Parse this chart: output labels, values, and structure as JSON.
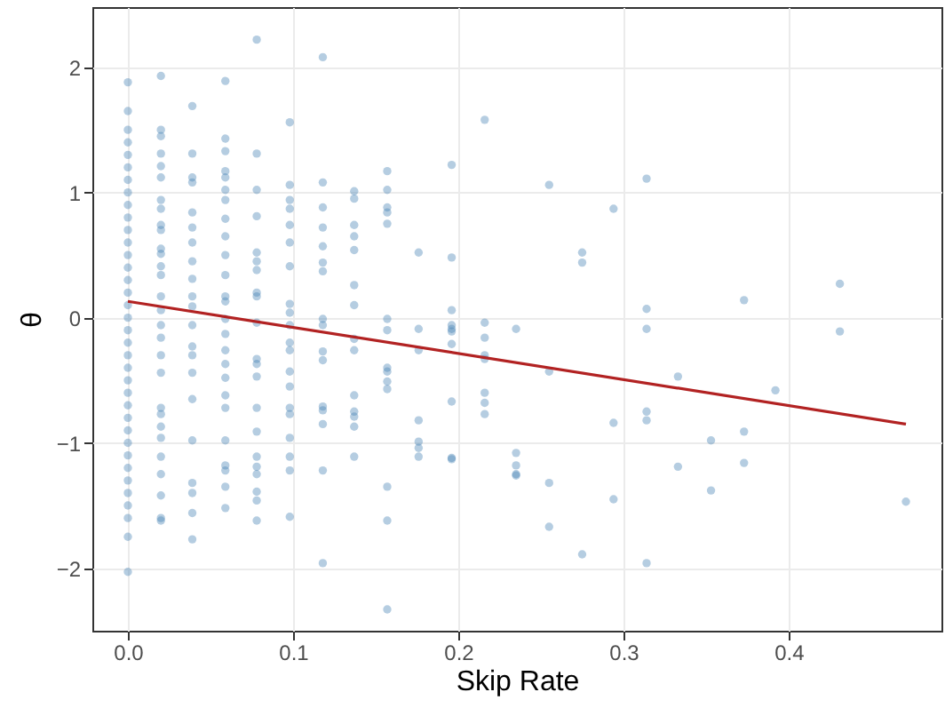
{
  "chart_data": {
    "type": "scatter",
    "xlabel": "Skip Rate",
    "ylabel": "θ",
    "xlim": [
      -0.0215,
      0.4925
    ],
    "ylim": [
      -2.5,
      2.48
    ],
    "xticks": [
      {
        "value": 0,
        "label": "0.0"
      },
      0.1,
      0.2,
      0.3,
      0.4
    ],
    "yticks": [
      -2,
      -1,
      0,
      1,
      2
    ],
    "grid": true,
    "series": [
      {
        "color": "#4682b4",
        "x": [
          0,
          0,
          0,
          0,
          0,
          0,
          0,
          0,
          0,
          0,
          0,
          0,
          0,
          0,
          0,
          0,
          0,
          0,
          0,
          0,
          0,
          0,
          0,
          0,
          0,
          0,
          0,
          0,
          0,
          0,
          0,
          0,
          0,
          0,
          0,
          0,
          0.02,
          0.02,
          0.02,
          0.02,
          0.02,
          0.02,
          0.02,
          0.02,
          0.02,
          0.02,
          0.02,
          0.02,
          0.02,
          0.02,
          0.02,
          0.02,
          0.02,
          0.02,
          0.02,
          0.02,
          0.02,
          0.02,
          0.02,
          0.02,
          0.02,
          0.02,
          0.02,
          0.02,
          0.02,
          0.039,
          0.039,
          0.039,
          0.039,
          0.039,
          0.039,
          0.039,
          0.039,
          0.039,
          0.039,
          0.039,
          0.039,
          0.039,
          0.039,
          0.039,
          0.039,
          0.039,
          0.039,
          0.039,
          0.039,
          0.039,
          0.059,
          0.059,
          0.059,
          0.059,
          0.059,
          0.059,
          0.059,
          0.059,
          0.059,
          0.059,
          0.059,
          0.059,
          0.059,
          0.059,
          0.059,
          0.059,
          0.059,
          0.059,
          0.059,
          0.059,
          0.059,
          0.059,
          0.059,
          0.059,
          0.059,
          0.078,
          0.078,
          0.078,
          0.078,
          0.078,
          0.078,
          0.078,
          0.078,
          0.078,
          0.078,
          0.078,
          0.078,
          0.078,
          0.078,
          0.078,
          0.078,
          0.078,
          0.078,
          0.078,
          0.078,
          0.078,
          0.098,
          0.098,
          0.098,
          0.098,
          0.098,
          0.098,
          0.098,
          0.098,
          0.098,
          0.098,
          0.098,
          0.098,
          0.098,
          0.098,
          0.098,
          0.098,
          0.098,
          0.098,
          0.098,
          0.098,
          0.118,
          0.118,
          0.118,
          0.118,
          0.118,
          0.118,
          0.118,
          0.118,
          0.118,
          0.118,
          0.118,
          0.118,
          0.118,
          0.118,
          0.118,
          0.118,
          0.137,
          0.137,
          0.137,
          0.137,
          0.137,
          0.137,
          0.137,
          0.137,
          0.137,
          0.137,
          0.137,
          0.137,
          0.137,
          0.137,
          0.157,
          0.157,
          0.157,
          0.157,
          0.157,
          0.157,
          0.157,
          0.157,
          0.157,
          0.157,
          0.157,
          0.157,
          0.157,
          0.157,
          0.176,
          0.176,
          0.176,
          0.176,
          0.176,
          0.176,
          0.176,
          0.196,
          0.196,
          0.196,
          0.196,
          0.196,
          0.196,
          0.196,
          0.196,
          0.196,
          0.196,
          0.216,
          0.216,
          0.216,
          0.216,
          0.216,
          0.216,
          0.216,
          0.216,
          0.235,
          0.235,
          0.235,
          0.235,
          0.235,
          0.255,
          0.255,
          0.255,
          0.255,
          0.275,
          0.275,
          0.275,
          0.294,
          0.294,
          0.294,
          0.314,
          0.314,
          0.314,
          0.314,
          0.314,
          0.314,
          0.333,
          0.333,
          0.353,
          0.353,
          0.373,
          0.373,
          0.373,
          0.392,
          0.431,
          0.431,
          0.471
        ],
        "values": [
          1.88,
          1.65,
          1.5,
          1.4,
          1.3,
          1.2,
          1.1,
          1.0,
          0.9,
          0.8,
          0.7,
          0.6,
          0.5,
          0.4,
          0.3,
          0.2,
          0.1,
          0.0,
          -0.1,
          -0.2,
          -0.3,
          -0.4,
          -0.5,
          -0.6,
          -0.7,
          -0.8,
          -0.9,
          -1.0,
          -1.1,
          -1.2,
          -1.3,
          -1.4,
          -1.5,
          -1.6,
          -1.75,
          -2.03,
          1.93,
          1.5,
          1.45,
          1.31,
          1.21,
          1.12,
          0.94,
          0.87,
          0.74,
          0.7,
          0.55,
          0.51,
          0.41,
          0.34,
          0.17,
          0.06,
          -0.06,
          -0.16,
          -0.3,
          -0.44,
          -0.72,
          -0.77,
          -0.87,
          -0.96,
          -1.11,
          -1.25,
          -1.42,
          -1.6,
          -1.62,
          1.69,
          1.31,
          1.12,
          1.08,
          0.84,
          0.72,
          0.6,
          0.45,
          0.31,
          0.17,
          0.09,
          -0.06,
          -0.23,
          -0.3,
          -0.44,
          -0.65,
          -0.98,
          -1.32,
          -1.4,
          -1.56,
          -1.77,
          1.89,
          1.43,
          1.33,
          1.17,
          1.12,
          1.02,
          0.94,
          0.79,
          0.65,
          0.5,
          0.34,
          0.17,
          0.13,
          -0.01,
          -0.13,
          -0.26,
          -0.37,
          -0.48,
          -0.62,
          -0.72,
          -0.98,
          -1.18,
          -1.22,
          -1.35,
          -1.52,
          2.22,
          1.31,
          1.02,
          0.81,
          0.52,
          0.45,
          0.38,
          0.2,
          0.17,
          -0.04,
          -0.33,
          -0.37,
          -0.47,
          -0.72,
          -0.91,
          -1.11,
          -1.19,
          -1.25,
          -1.39,
          -1.46,
          -1.62,
          1.56,
          1.06,
          0.94,
          0.87,
          0.74,
          0.6,
          0.41,
          0.11,
          0.04,
          -0.06,
          -0.2,
          -0.26,
          -0.43,
          -0.55,
          -0.72,
          -0.77,
          -0.96,
          -1.11,
          -1.22,
          -1.59,
          2.08,
          1.08,
          0.88,
          0.72,
          0.57,
          0.44,
          0.37,
          -0.01,
          -0.06,
          -0.27,
          -0.34,
          -0.71,
          -0.74,
          -0.85,
          -1.22,
          -1.96,
          1.01,
          0.95,
          0.74,
          0.65,
          0.54,
          0.26,
          0.1,
          -0.17,
          -0.26,
          -0.62,
          -0.75,
          -0.79,
          -0.87,
          -1.11,
          1.17,
          1.02,
          0.88,
          0.84,
          0.75,
          -0.01,
          -0.1,
          -0.4,
          -0.43,
          -0.51,
          -0.57,
          -1.35,
          -1.62,
          -2.33,
          0.52,
          -0.09,
          -0.26,
          -0.82,
          -0.99,
          -1.04,
          -1.11,
          1.22,
          0.48,
          0.06,
          -0.06,
          -0.09,
          -0.11,
          -0.21,
          -0.67,
          -1.12,
          -1.13,
          1.58,
          -0.04,
          -0.16,
          -0.3,
          -0.33,
          -0.6,
          -0.68,
          -0.77,
          -0.09,
          -1.08,
          -1.18,
          -1.25,
          -1.26,
          1.06,
          -0.43,
          -1.32,
          -1.67,
          0.52,
          0.44,
          -1.89,
          0.87,
          -0.84,
          -1.45,
          1.11,
          0.07,
          -0.09,
          -0.75,
          -0.82,
          -1.96,
          -0.47,
          -1.19,
          -0.98,
          -1.38,
          0.14,
          -0.91,
          -1.16,
          -0.58,
          0.27,
          -0.11,
          -1.47
        ]
      },
      {
        "type": "line",
        "color": "#b22222",
        "x": [
          0,
          0.471
        ],
        "values": [
          0.13,
          -0.85
        ]
      }
    ]
  }
}
